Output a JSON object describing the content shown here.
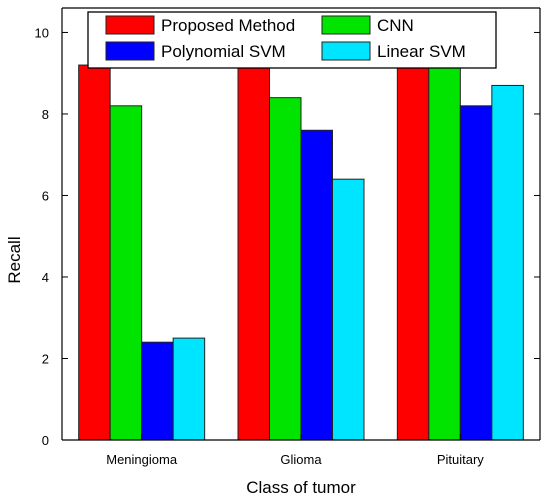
{
  "chart_data": {
    "type": "bar",
    "title": "",
    "xlabel": "Class of tumor",
    "ylabel": "Recall",
    "categories": [
      "Meningioma",
      "Glioma",
      "Pituitary"
    ],
    "ylim": [
      0,
      10.6
    ],
    "yticks": [
      0,
      2,
      4,
      6,
      8,
      10
    ],
    "ytick_labels": [
      "0",
      "2",
      "4",
      "6",
      "8",
      "10"
    ],
    "grid": false,
    "legend_position": "top",
    "series": [
      {
        "name": "Proposed Method",
        "color": "#ff0000",
        "values": [
          9.2,
          9.4,
          9.8
        ]
      },
      {
        "name": "CNN",
        "color": "#00e400",
        "values": [
          8.2,
          8.4,
          9.8
        ]
      },
      {
        "name": "Polynomial SVM",
        "color": "#0000ff",
        "values": [
          2.4,
          7.6,
          8.2
        ]
      },
      {
        "name": "Linear SVM",
        "color": "#00e5ff",
        "values": [
          2.5,
          6.4,
          8.7
        ]
      }
    ]
  }
}
